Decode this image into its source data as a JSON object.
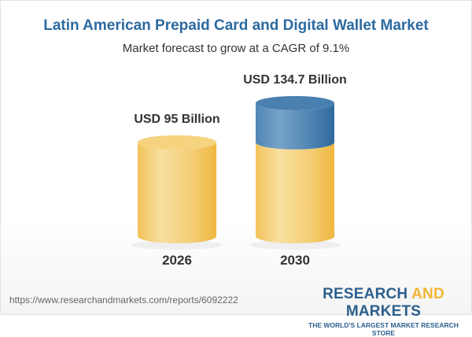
{
  "title": "Latin American Prepaid Card and Digital Wallet Market",
  "subtitle": "Market forecast to grow at a CAGR of 9.1%",
  "chart_data": {
    "type": "bar",
    "style": "3d-cylinder",
    "categories": [
      "2026",
      "2030"
    ],
    "values": [
      95,
      134.7
    ],
    "data_labels": [
      "USD 95 Billion",
      "USD 134.7 Billion"
    ],
    "unit": "USD Billion",
    "colors": {
      "base": "#f4c65a",
      "growth": "#3f78a8"
    }
  },
  "footer": {
    "url": "https://www.researchandmarkets.com/reports/6092222",
    "logo_part1": "RESEARCH ",
    "logo_part2": "AND",
    "logo_part3": " MARKETS",
    "tagline": "THE WORLD'S LARGEST MARKET RESEARCH STORE"
  }
}
